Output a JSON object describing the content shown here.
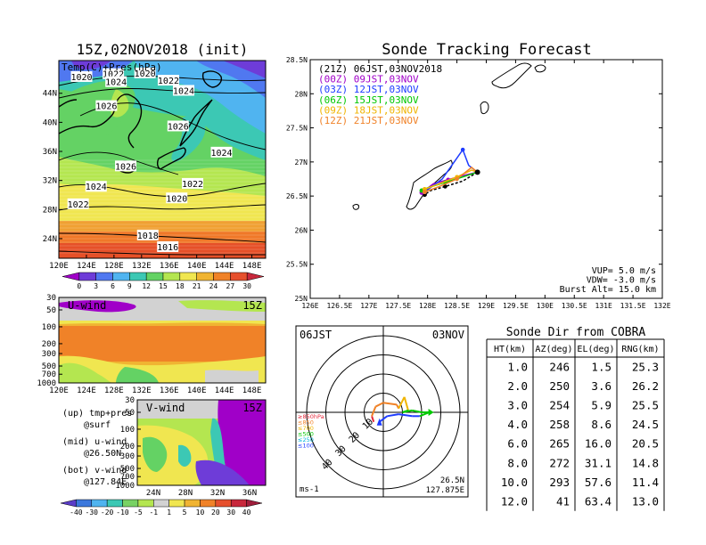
{
  "map_panel": {
    "title": "15Z,02NOV2018 (init)",
    "overlay_label": "Temp(C)+Pres(hPa)",
    "lat_labels": [
      "44N",
      "40N",
      "36N",
      "32N",
      "28N",
      "24N"
    ],
    "lon_labels": [
      "120E",
      "124E",
      "128E",
      "132E",
      "136E",
      "140E",
      "144E",
      "148E"
    ],
    "isobar_labels": [
      {
        "text": "1020",
        "lon": 123.3,
        "lat": 46.3
      },
      {
        "text": "1022",
        "lon": 127.9,
        "lat": 46.7
      },
      {
        "text": "1024",
        "lon": 128.3,
        "lat": 45.6
      },
      {
        "text": "1020",
        "lon": 132.5,
        "lat": 46.8
      },
      {
        "text": "1022",
        "lon": 135.9,
        "lat": 45.8
      },
      {
        "text": "1024",
        "lon": 138.1,
        "lat": 44.4
      },
      {
        "text": "1026",
        "lon": 126.9,
        "lat": 42.3
      },
      {
        "text": "1026",
        "lon": 137.3,
        "lat": 39.5
      },
      {
        "text": "1024",
        "lon": 143.6,
        "lat": 35.9
      },
      {
        "text": "1026",
        "lon": 129.7,
        "lat": 34.0
      },
      {
        "text": "1022",
        "lon": 139.4,
        "lat": 31.6
      },
      {
        "text": "1024",
        "lon": 125.4,
        "lat": 31.2
      },
      {
        "text": "1020",
        "lon": 137.1,
        "lat": 29.6
      },
      {
        "text": "1022",
        "lon": 122.8,
        "lat": 28.8
      },
      {
        "text": "1018",
        "lon": 132.9,
        "lat": 24.5
      },
      {
        "text": "1016",
        "lon": 135.8,
        "lat": 22.9
      }
    ],
    "colorbar_labels": [
      "0",
      "3",
      "6",
      "9",
      "12",
      "15",
      "18",
      "21",
      "24",
      "27",
      "30"
    ],
    "colorbar_colors": [
      "#a000c8",
      "#6e3cd8",
      "#5078f0",
      "#50b4f0",
      "#3cc8b4",
      "#64d264",
      "#b4e650",
      "#f0e650",
      "#f0b432",
      "#f08228",
      "#e6502d",
      "#c8283c"
    ]
  },
  "uwind_panel": {
    "label": "U-wind",
    "time": "15Z",
    "y_labels": [
      "30",
      "50",
      "100",
      "200",
      "300",
      "500",
      "700",
      "1000"
    ],
    "x_labels": [
      "120E",
      "124E",
      "128E",
      "132E",
      "136E",
      "140E",
      "144E",
      "148E"
    ]
  },
  "vwind_panel": {
    "label": "V-wind",
    "time": "15Z",
    "y_labels": [
      "30",
      "50",
      "100",
      "200",
      "300",
      "500",
      "700",
      "1000"
    ],
    "x_labels": [
      "24N",
      "28N",
      "32N",
      "36N"
    ]
  },
  "legend_notes": [
    {
      "line1": "(up) tmp+pres",
      "line2": "@surf"
    },
    {
      "line1": "(mid) u-wind",
      "line2": "@26.50N"
    },
    {
      "line1": "(bot) v-wind",
      "line2": "@127.84E"
    }
  ],
  "wind_colorbar": {
    "labels": [
      "-40",
      "-30",
      "-20",
      "-10",
      "-5",
      "-1",
      "1",
      "5",
      "10",
      "20",
      "30",
      "40"
    ],
    "colors": [
      "#5a3cc8",
      "#3c78dc",
      "#50b4f0",
      "#3cc8b4",
      "#78d264",
      "#b4e650",
      "#d2d2d2",
      "#f0e650",
      "#f0b432",
      "#f08228",
      "#e6502d",
      "#c8283c",
      "#a01e3c"
    ]
  },
  "chart_data": [
    {
      "type": "line",
      "title": "Sonde Tracking Forecast",
      "xlim": [
        126,
        132
      ],
      "ylim": [
        25,
        28.5
      ],
      "x_tick_labels": [
        "126E",
        "126.5E",
        "127E",
        "127.5E",
        "128E",
        "128.5E",
        "129E",
        "129.5E",
        "130E",
        "130.5E",
        "131E",
        "131.5E",
        "132E"
      ],
      "y_tick_labels": [
        "25N",
        "25.5N",
        "26N",
        "26.5N",
        "27N",
        "27.5N",
        "28N",
        "28.5N"
      ],
      "launch": {
        "lon": 128.85,
        "lat": 26.85
      },
      "series": [
        {
          "name": "(21Z) 06JST,03NOV2018",
          "color": "#000000",
          "x": [
            128.85,
            128.6,
            128.3,
            128.05,
            127.95
          ],
          "y": [
            26.85,
            26.72,
            26.64,
            26.58,
            26.52
          ]
        },
        {
          "name": "(00Z) 09JST,03NOV",
          "color": "#a000c8",
          "x": [
            128.85,
            128.6,
            128.35,
            128.1,
            127.9
          ],
          "y": [
            26.85,
            26.8,
            26.74,
            26.68,
            26.55
          ]
        },
        {
          "name": "(03Z) 12JST,03NOV",
          "color": "#1e3cff",
          "x": [
            128.85,
            128.7,
            128.6,
            128.25,
            127.95
          ],
          "y": [
            26.85,
            26.95,
            27.18,
            26.75,
            26.56
          ]
        },
        {
          "name": "(06Z) 15JST,03NOV",
          "color": "#00c800",
          "x": [
            128.85,
            128.6,
            128.3,
            128.0,
            127.9
          ],
          "y": [
            26.85,
            26.78,
            26.7,
            26.62,
            26.58
          ]
        },
        {
          "name": "(09Z) 18JST,03NOV",
          "color": "#f0b400",
          "x": [
            128.85,
            128.75,
            128.5,
            128.2,
            127.95
          ],
          "y": [
            26.85,
            26.88,
            26.78,
            26.68,
            26.6
          ]
        },
        {
          "name": "(12Z) 21JST,03NOV",
          "color": "#f08228",
          "x": [
            128.85,
            128.75,
            128.5,
            128.2,
            127.95
          ],
          "y": [
            26.85,
            26.92,
            26.75,
            26.64,
            26.56
          ]
        }
      ],
      "annotations": [
        "VUP= 5.0 m/s",
        "VDW= -3.0 m/s",
        "Burst Alt= 15.0 km"
      ]
    },
    {
      "type": "scatter",
      "title_left": "06JST",
      "title_right": "03NOV",
      "range_rings_m_per_s": [
        10,
        20,
        30,
        40
      ],
      "ring_labels": [
        "10",
        "20",
        "30",
        "40"
      ],
      "unit_label": "ms-1",
      "location_lines": [
        "26.5N",
        "127.875E"
      ],
      "pressure_legend": [
        {
          "text": "≥850hPa",
          "color": "#e6283c"
        },
        {
          "text": "≤850",
          "color": "#f08228"
        },
        {
          "text": "≤700",
          "color": "#f0b400"
        },
        {
          "text": "≤500",
          "color": "#00c800"
        },
        {
          "text": "≤250",
          "color": "#00b4dc"
        },
        {
          "text": "≤100",
          "color": "#1e3cff"
        }
      ],
      "hodograph": [
        {
          "u": -5,
          "v": -5,
          "color": "#e6283c"
        },
        {
          "u": -6,
          "v": -2,
          "color": "#e6283c"
        },
        {
          "u": -4,
          "v": 3,
          "color": "#f08228"
        },
        {
          "u": 0,
          "v": 5,
          "color": "#f08228"
        },
        {
          "u": 7,
          "v": 4,
          "color": "#f08228"
        },
        {
          "u": 8,
          "v": 2,
          "color": "#f08228"
        },
        {
          "u": 11,
          "v": 8,
          "color": "#f0b400"
        },
        {
          "u": 13,
          "v": 1,
          "color": "#f0b400"
        },
        {
          "u": 10,
          "v": 0,
          "color": "#00c800"
        },
        {
          "u": 15,
          "v": 1,
          "color": "#00c800"
        },
        {
          "u": 20,
          "v": 0,
          "color": "#00c800"
        },
        {
          "u": 24,
          "v": 0,
          "color": "#00c800"
        },
        {
          "u": 19,
          "v": -2,
          "color": "#00c800"
        },
        {
          "u": 15,
          "v": -2,
          "color": "#1e3cff"
        },
        {
          "u": 8,
          "v": -1,
          "color": "#1e3cff"
        },
        {
          "u": 2,
          "v": -2,
          "color": "#1e3cff"
        },
        {
          "u": -2,
          "v": -5,
          "color": "#1e3cff"
        }
      ]
    },
    {
      "type": "table",
      "title": "Sonde Dir from COBRA",
      "columns": [
        "HT(km)",
        "AZ(deg)",
        "EL(deg)",
        "RNG(km)"
      ],
      "rows": [
        [
          "1.0",
          "246",
          "1.5",
          "25.3"
        ],
        [
          "2.0",
          "250",
          "3.6",
          "26.2"
        ],
        [
          "3.0",
          "254",
          "5.9",
          "25.5"
        ],
        [
          "4.0",
          "258",
          "8.6",
          "24.5"
        ],
        [
          "6.0",
          "265",
          "16.0",
          "20.5"
        ],
        [
          "8.0",
          "272",
          "31.1",
          "14.8"
        ],
        [
          "10.0",
          "293",
          "57.6",
          "11.4"
        ],
        [
          "12.0",
          "41",
          "63.4",
          "13.0"
        ]
      ]
    }
  ]
}
